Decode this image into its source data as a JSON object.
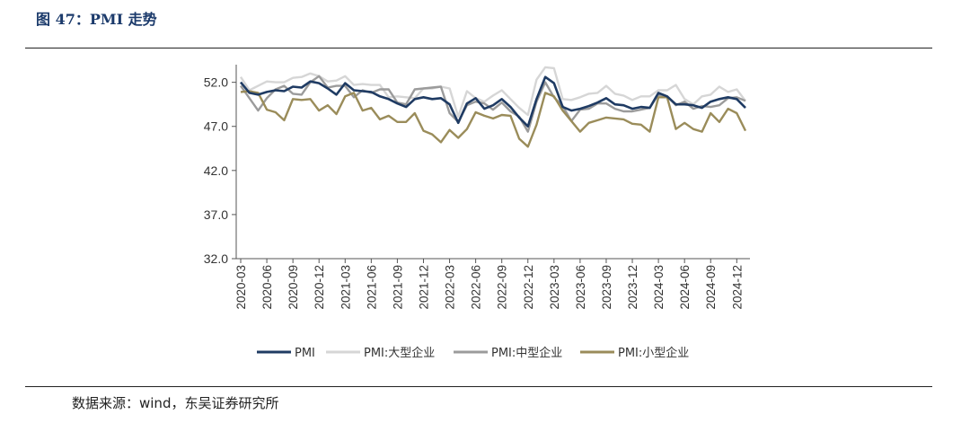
{
  "figure": {
    "title": "图 47：PMI 走势",
    "source": "数据来源：wind，东吴证券研究所"
  },
  "chart_data": {
    "type": "line",
    "title": "",
    "xlabel": "",
    "ylabel": "",
    "ylim": [
      32,
      54
    ],
    "yticks": [
      32,
      37,
      42,
      47,
      52
    ],
    "ytick_labels": [
      "32.0",
      "37.0",
      "42.0",
      "47.0",
      "52.0"
    ],
    "grid": false,
    "legend_position": "bottom",
    "xtick_labels": [
      "2020-03",
      "2020-06",
      "2020-09",
      "2020-12",
      "2021-03",
      "2021-06",
      "2021-09",
      "2021-12",
      "2022-03",
      "2022-06",
      "2022-09",
      "2022-12",
      "2023-03",
      "2023-06",
      "2023-09",
      "2023-12",
      "2024-03",
      "2024-06",
      "2024-09",
      "2024-12"
    ],
    "x": [
      "2020-03",
      "2020-04",
      "2020-05",
      "2020-06",
      "2020-07",
      "2020-08",
      "2020-09",
      "2020-10",
      "2020-11",
      "2020-12",
      "2021-01",
      "2021-02",
      "2021-03",
      "2021-04",
      "2021-05",
      "2021-06",
      "2021-07",
      "2021-08",
      "2021-09",
      "2021-10",
      "2021-11",
      "2021-12",
      "2022-01",
      "2022-02",
      "2022-03",
      "2022-04",
      "2022-05",
      "2022-06",
      "2022-07",
      "2022-08",
      "2022-09",
      "2022-10",
      "2022-11",
      "2022-12",
      "2023-01",
      "2023-02",
      "2023-03",
      "2023-04",
      "2023-05",
      "2023-06",
      "2023-07",
      "2023-08",
      "2023-09",
      "2023-10",
      "2023-11",
      "2023-12",
      "2024-01",
      "2024-02",
      "2024-03",
      "2024-04",
      "2024-05",
      "2024-06",
      "2024-07",
      "2024-08",
      "2024-09",
      "2024-10",
      "2024-11",
      "2024-12",
      "2025-01"
    ],
    "series": [
      {
        "name": "PMI",
        "color": "#1f3b63",
        "values": [
          52.0,
          50.8,
          50.6,
          50.9,
          51.1,
          51.0,
          51.5,
          51.4,
          52.1,
          51.9,
          51.3,
          50.6,
          51.9,
          51.1,
          51.0,
          50.9,
          50.4,
          50.1,
          49.6,
          49.2,
          50.1,
          50.3,
          50.1,
          50.2,
          49.5,
          47.4,
          49.6,
          50.2,
          49.0,
          49.4,
          50.1,
          49.2,
          48.0,
          47.0,
          50.1,
          52.6,
          51.9,
          49.2,
          48.8,
          49.0,
          49.3,
          49.7,
          50.2,
          49.5,
          49.4,
          49.0,
          49.2,
          49.1,
          50.8,
          50.4,
          49.5,
          49.5,
          49.4,
          49.1,
          49.8,
          50.1,
          50.3,
          50.1,
          49.1
        ]
      },
      {
        "name": "PMI:大型企业",
        "color": "#d6d6d6",
        "values": [
          52.6,
          51.1,
          51.6,
          52.1,
          52.0,
          52.0,
          52.5,
          52.6,
          53.0,
          52.7,
          52.1,
          52.2,
          52.7,
          51.7,
          51.8,
          51.7,
          51.7,
          50.3,
          50.4,
          50.3,
          50.2,
          51.3,
          51.3,
          51.5,
          51.3,
          48.1,
          51.0,
          50.2,
          49.8,
          50.5,
          51.1,
          50.1,
          49.1,
          48.3,
          52.3,
          53.7,
          53.6,
          50.1,
          50.0,
          50.3,
          50.7,
          50.8,
          51.6,
          50.7,
          50.5,
          50.0,
          50.4,
          50.4,
          51.1,
          51.1,
          51.7,
          50.1,
          49.5,
          50.4,
          50.6,
          51.5,
          50.9,
          51.2,
          49.9
        ]
      },
      {
        "name": "PMI:中型企业",
        "color": "#9b9b9b",
        "values": [
          51.6,
          50.2,
          48.8,
          50.2,
          51.2,
          51.6,
          50.7,
          50.6,
          52.0,
          52.7,
          51.4,
          51.6,
          51.6,
          50.3,
          51.1,
          50.8,
          51.2,
          51.2,
          49.7,
          49.5,
          51.2,
          51.3,
          51.4,
          51.5,
          48.5,
          47.5,
          49.4,
          49.8,
          49.6,
          48.9,
          49.7,
          48.7,
          48.1,
          46.4,
          49.8,
          52.0,
          50.3,
          49.3,
          47.6,
          48.9,
          49.0,
          49.6,
          49.6,
          49.0,
          48.7,
          48.7,
          48.9,
          49.1,
          50.6,
          50.4,
          49.4,
          49.8,
          49.0,
          49.3,
          49.2,
          49.4,
          50.2,
          50.3,
          49.9
        ]
      },
      {
        "name": "PMI:小型企业",
        "color": "#9a8c5a",
        "values": [
          50.9,
          51.0,
          50.8,
          48.9,
          48.6,
          47.7,
          50.1,
          50.0,
          50.1,
          48.8,
          49.4,
          48.4,
          50.4,
          50.8,
          48.8,
          49.1,
          47.8,
          48.2,
          47.5,
          47.5,
          48.5,
          46.5,
          46.1,
          45.2,
          46.6,
          45.7,
          46.7,
          48.6,
          48.2,
          47.9,
          48.3,
          48.2,
          45.6,
          44.7,
          47.2,
          50.8,
          50.4,
          48.8,
          47.6,
          46.4,
          47.4,
          47.7,
          48.0,
          47.9,
          47.8,
          47.3,
          47.2,
          46.4,
          50.3,
          50.3,
          46.7,
          47.4,
          46.7,
          46.4,
          48.5,
          47.5,
          49.0,
          48.5,
          46.5
        ]
      }
    ]
  }
}
